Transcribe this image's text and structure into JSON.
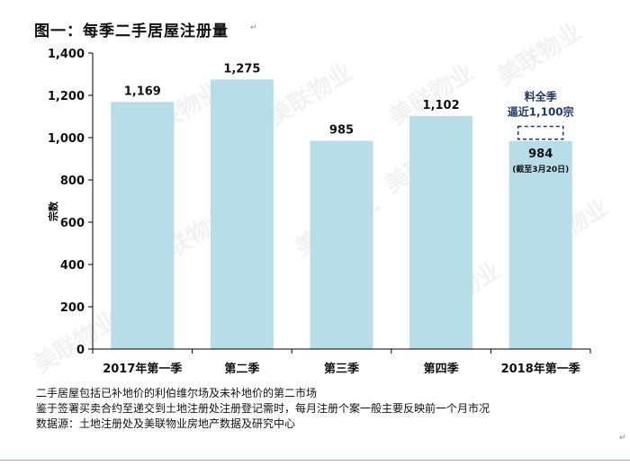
{
  "page": {
    "title": "图一：每季二手居屋注册量",
    "para_mark": "↵",
    "notes": [
      "二手居屋包括已补地价的利伯维尔场及未补地价的第二市场",
      "鉴于签署买卖合约至递交到土地注册处注册登记需时，每月注册个案一般主要反映前一个月市况",
      "数据源：土地注册处及美联物业房地产数据及研究中心"
    ],
    "watermark": "美联物业",
    "colors": {
      "bar": "#b7dde8",
      "callout": "#1f3864",
      "axis": "#000000"
    }
  },
  "chart_data": {
    "type": "bar",
    "categories": [
      "2017年第一季",
      "第二季",
      "第三季",
      "第四季",
      "2018年第一季"
    ],
    "values": [
      1169,
      1275,
      985,
      1102,
      984
    ],
    "value_labels": [
      "1,169",
      "1,275",
      "985",
      "1,102",
      "984"
    ],
    "ylabel": "宗数",
    "ylim": [
      0,
      1400
    ],
    "yticks": [
      0,
      200,
      400,
      600,
      800,
      1000,
      1200,
      1400
    ],
    "ytick_labels": [
      "0",
      "200",
      "400",
      "600",
      "800",
      "1,000",
      "1,200",
      "1,400"
    ],
    "grid": false,
    "legend": "none",
    "annotation": {
      "category_index": 4,
      "projected_value": 1100,
      "text_line1": "料全季",
      "text_line2": "逼近1,100宗",
      "sub_note": "(截至3月20日)"
    }
  }
}
